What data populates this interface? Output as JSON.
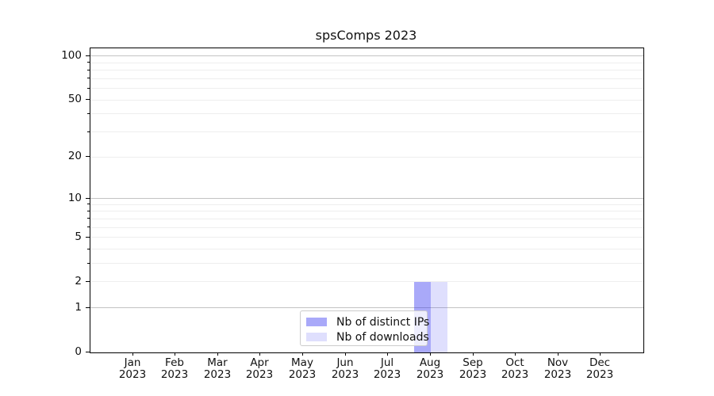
{
  "title": "spsComps 2023",
  "chart_data": {
    "type": "bar",
    "title": "spsComps 2023",
    "categories": [
      "Jan",
      "Feb",
      "Mar",
      "Apr",
      "May",
      "Jun",
      "Jul",
      "Aug",
      "Sep",
      "Oct",
      "Nov",
      "Dec"
    ],
    "year_label": "2023",
    "series": [
      {
        "name": "Nb of distinct IPs",
        "values": [
          0,
          0,
          0,
          0,
          0,
          0,
          0,
          2,
          0,
          0,
          0,
          0
        ],
        "fill": "rgba(40,40,240,0.4)",
        "swatch": "#a9a9f9"
      },
      {
        "name": "Nb of downloads",
        "values": [
          0,
          0,
          0,
          0,
          0,
          0,
          0,
          2,
          0,
          0,
          0,
          0
        ],
        "fill": "rgba(40,40,240,0.15)",
        "swatch": "#dfdffd"
      }
    ],
    "xlabel": "",
    "ylabel": "",
    "y_scale": "log10(1+x)",
    "y_tick_labels": [
      0,
      1,
      2,
      5,
      10,
      20,
      50,
      100
    ],
    "y_major_gridlines": [
      1,
      10,
      100
    ],
    "y_minor_gridlines": [
      2,
      3,
      4,
      5,
      6,
      7,
      8,
      9,
      20,
      30,
      40,
      50,
      60,
      70,
      80,
      90
    ],
    "ylim": [
      0,
      113
    ],
    "grid": "both",
    "axes_frame": true,
    "legend_position": "lower center"
  },
  "legend": {
    "items": [
      "Nb of distinct IPs",
      "Nb of downloads"
    ]
  },
  "colors": {
    "bar_distinct_ips": "#a9a9f9",
    "bar_downloads": "#dfdffd",
    "major_grid": "#c3c3c3",
    "minor_grid": "#eeeeee",
    "axis": "#000000",
    "background": "#ffffff"
  }
}
